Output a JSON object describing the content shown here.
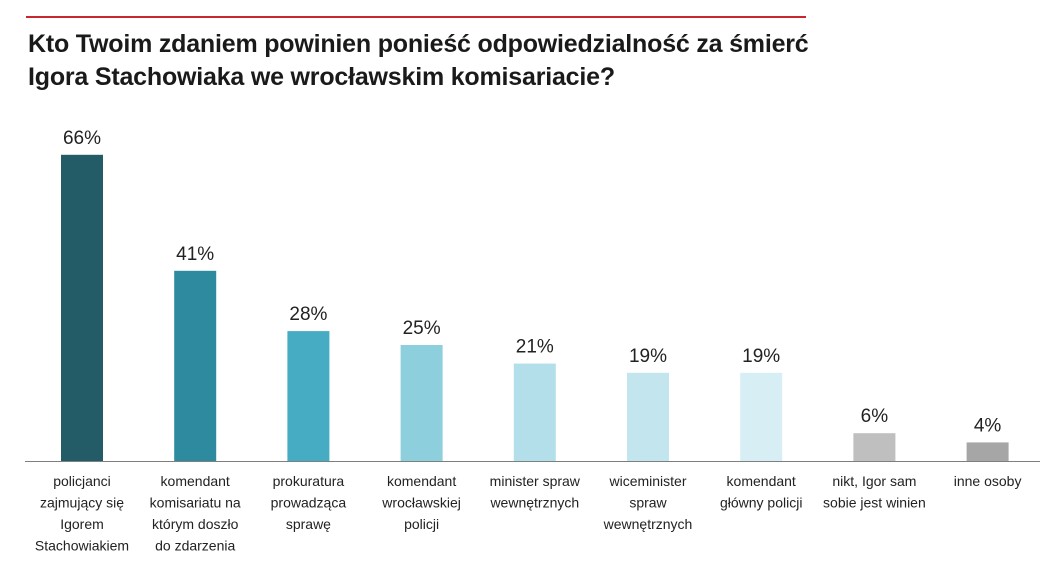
{
  "title": {
    "line1": "Kto Twoim zdaniem powinien ponieść odpowiedzialność za śmierć",
    "line2": "Igora Stachowiaka we wrocławskim komisariacie?"
  },
  "colors": {
    "rule": "#c8282d",
    "axis": "#7f7f7f"
  },
  "chart_data": {
    "type": "bar",
    "title": "Kto Twoim zdaniem powinien ponieść odpowiedzialność za śmierć Igora Stachowiaka we wrocławskim komisariacie?",
    "xlabel": "",
    "ylabel": "",
    "ylim": [
      0,
      70
    ],
    "grid": false,
    "legend": "none",
    "categories": [
      [
        "policjanci",
        "zajmujący się",
        "Igorem",
        "Stachowiakiem"
      ],
      [
        "komendant",
        "komisariatu na",
        "którym doszło",
        "do zdarzenia"
      ],
      [
        "prokuratura",
        "prowadząca",
        "sprawę"
      ],
      [
        "komendant",
        "wrocławskiej",
        "policji"
      ],
      [
        "minister spraw",
        "wewnętrznych"
      ],
      [
        "wiceminister",
        "spraw",
        "wewnętrznych"
      ],
      [
        "komendant",
        "główny policji"
      ],
      [
        "nikt, Igor sam",
        "sobie jest winien"
      ],
      [
        "inne osoby"
      ]
    ],
    "values": [
      66,
      41,
      28,
      25,
      21,
      19,
      19,
      6,
      4
    ],
    "value_labels": [
      "66%",
      "41%",
      "28%",
      "25%",
      "21%",
      "19%",
      "19%",
      "6%",
      "4%"
    ],
    "bar_colors": [
      "#235b67",
      "#2e8a9e",
      "#45acc3",
      "#8ecfdd",
      "#b2dfe9",
      "#c2e5ee",
      "#d7eef4",
      "#bfbfbf",
      "#a6a6a6"
    ]
  }
}
